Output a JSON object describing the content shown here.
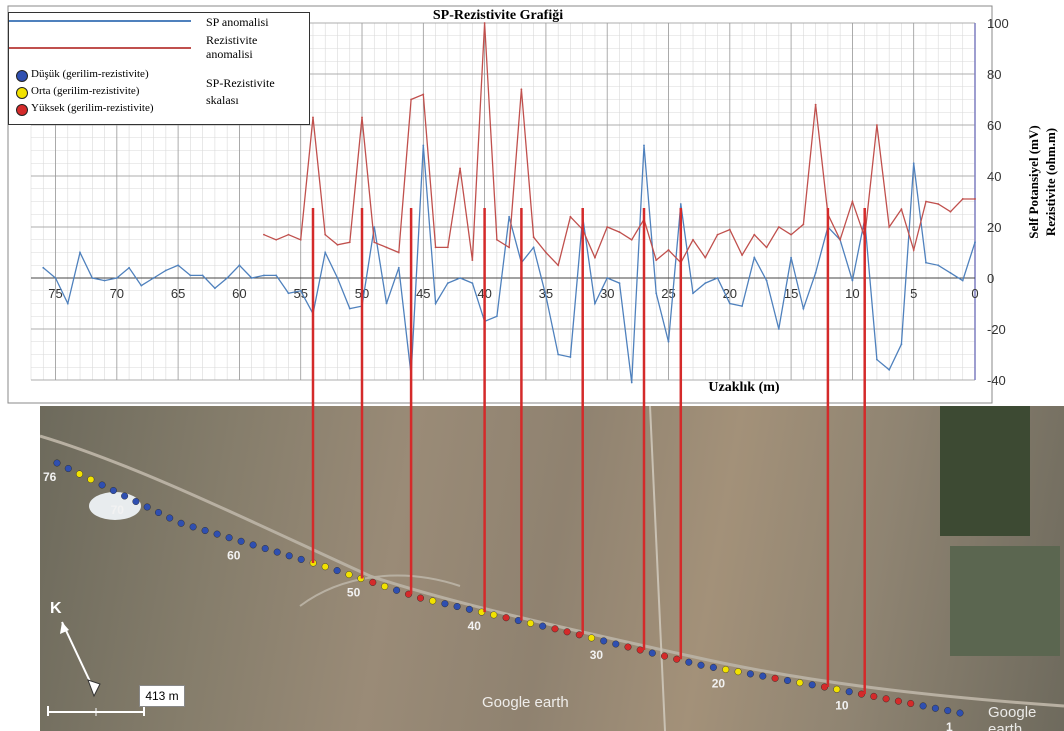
{
  "chart_data": {
    "type": "line",
    "title": "SP-Rezistivite Grafiği",
    "xlabel": "Uzaklık (m)",
    "ylabel": "Self Potansiyel (mV) Rezistivite (ohm.m)",
    "ylabel_lines": [
      "Self Potansiyel (mV)",
      "Rezistivite (ohm.m)"
    ],
    "xlim": [
      77,
      0
    ],
    "ylim": [
      -40,
      100
    ],
    "x_ticks": [
      75,
      70,
      65,
      60,
      55,
      50,
      45,
      40,
      35,
      30,
      25,
      20,
      15,
      10,
      5,
      0
    ],
    "y_ticks": [
      -40,
      -20,
      0,
      20,
      40,
      60,
      80,
      100
    ],
    "grid": true,
    "legend_position": "top-left",
    "series": [
      {
        "name": "SP anomalisi",
        "color": "#4f81bd",
        "x": [
          76,
          75,
          74,
          73,
          72,
          71,
          70,
          69,
          68,
          67,
          66,
          65,
          64,
          63,
          62,
          61,
          60,
          59,
          58,
          57,
          56,
          55,
          54,
          53,
          52,
          51,
          50,
          49,
          48,
          47,
          46,
          45,
          44,
          43,
          42,
          41,
          40,
          39,
          38,
          37,
          36,
          35,
          34,
          33,
          32,
          31,
          30,
          29,
          28,
          27,
          26,
          25,
          24,
          23,
          22,
          21,
          20,
          19,
          18,
          17,
          16,
          15,
          14,
          13,
          12,
          11,
          10,
          9,
          8,
          7,
          6,
          5,
          4,
          3,
          2,
          1,
          0
        ],
        "values": [
          4,
          0,
          -10,
          10,
          0,
          -1,
          0,
          4,
          -3,
          0,
          3,
          5,
          1,
          1,
          -4,
          0,
          5,
          0,
          1,
          1,
          -6,
          -5,
          -14,
          10,
          0,
          -12,
          -11,
          20,
          -10,
          4,
          -38,
          52,
          -10,
          -2,
          0,
          -2,
          -17,
          -15,
          24,
          6,
          12,
          -7,
          -30,
          -31,
          24,
          -10,
          0,
          -2,
          -41,
          52,
          -6,
          -25,
          29,
          -6,
          -2,
          0,
          -10,
          -11,
          8,
          -1,
          -20,
          8,
          -12,
          2,
          20,
          15,
          -1,
          23,
          -32,
          -36,
          -26,
          45,
          6,
          5,
          2,
          -1,
          14
        ]
      },
      {
        "name": "Rezistivite anomalisi",
        "color": "#c0504d",
        "x": [
          58,
          57,
          56,
          55,
          54,
          53,
          52,
          51,
          50,
          49,
          48,
          47,
          46,
          45,
          44,
          43,
          42,
          41,
          40,
          39,
          38,
          37,
          36,
          35,
          34,
          33,
          32,
          31,
          30,
          29,
          28,
          27,
          26,
          25,
          24,
          23,
          22,
          21,
          20,
          19,
          18,
          17,
          16,
          15,
          14,
          13,
          12,
          11,
          10,
          9,
          8,
          7,
          6,
          5,
          4,
          3,
          2,
          1,
          0
        ],
        "values": [
          17,
          15,
          17,
          15,
          63,
          17,
          13,
          14,
          63,
          14,
          12,
          10,
          70,
          72,
          12,
          12,
          43,
          7,
          100,
          15,
          12,
          74,
          16,
          10,
          5,
          24,
          19,
          8,
          20,
          18,
          15,
          23,
          7,
          11,
          6,
          15,
          8,
          17,
          19,
          9,
          17,
          12,
          20,
          17,
          21,
          68,
          25,
          15,
          30,
          16,
          60,
          20,
          27,
          11,
          30,
          29,
          26,
          31,
          31
        ]
      }
    ]
  },
  "legend": {
    "sp_label": "SP anomalisi",
    "rez_label_1": "Rezistivite",
    "rez_label_2": "anomalisi",
    "scale_title_1": "SP-Rezistivite",
    "scale_title_2": "skalası",
    "low": "Düşük (gerilim-rezistivite)",
    "mid": "Orta (gerilim-rezistivite)",
    "high": "Yüksek (gerilim-rezistivite)",
    "low_color": "#2f4fb0",
    "mid_color": "#f2e200",
    "high_color": "#d42a2a"
  },
  "map": {
    "station_labels": [
      "76",
      "70",
      "60",
      "50",
      "40",
      "30",
      "20",
      "10",
      "1"
    ],
    "north_label": "K",
    "scale_label": "413 m",
    "watermark": "Google earth",
    "anomaly_distances": [
      54,
      50,
      46,
      40,
      37,
      32,
      27,
      24,
      12,
      9
    ]
  }
}
